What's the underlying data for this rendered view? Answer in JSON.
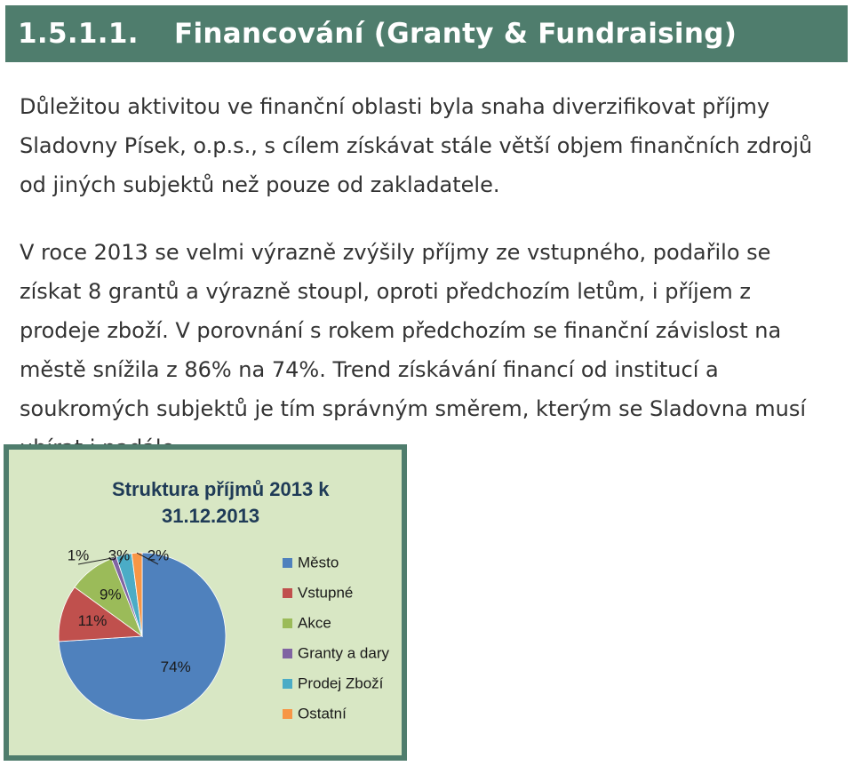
{
  "heading": {
    "number": "1.5.1.1.",
    "title": "Financování (Granty & Fundraising)"
  },
  "paragraphs": [
    "Důležitou aktivitou ve finanční oblasti byla snaha diverzifikovat příjmy Sladovny Písek, o.p.s., s cílem získávat stále větší objem finančních zdrojů od jiných subjektů než pouze od zakladatele.",
    "V roce 2013 se velmi výrazně zvýšily příjmy ze vstupného, podařilo se získat 8 grantů a výrazně stoupl, oproti předchozím letům, i příjem z prodeje zboží. V porovnání s rokem předchozím se finanční závislost na městě snížila z 86% na 74%. Trend získávání financí od institucí a soukromých subjektů je tím správným směrem, kterým se Sladovna musí ubírat i nadále."
  ],
  "chart_data": {
    "type": "pie",
    "title": [
      "Struktura příjmů 2013  k",
      "31.12.2013"
    ],
    "categories": [
      "Město",
      "Vstupné",
      "Akce",
      "Granty a dary",
      "Prodej Zboží",
      "Ostatní"
    ],
    "values": [
      74,
      11,
      9,
      1,
      3,
      2
    ],
    "labels": [
      "74%",
      "11%",
      "9%",
      "1%",
      "3%",
      "2%"
    ],
    "colors": [
      "#4f81bd",
      "#c0504d",
      "#9bbb59",
      "#8064a2",
      "#4bacc6",
      "#f79646"
    ],
    "legend_position": "right"
  }
}
